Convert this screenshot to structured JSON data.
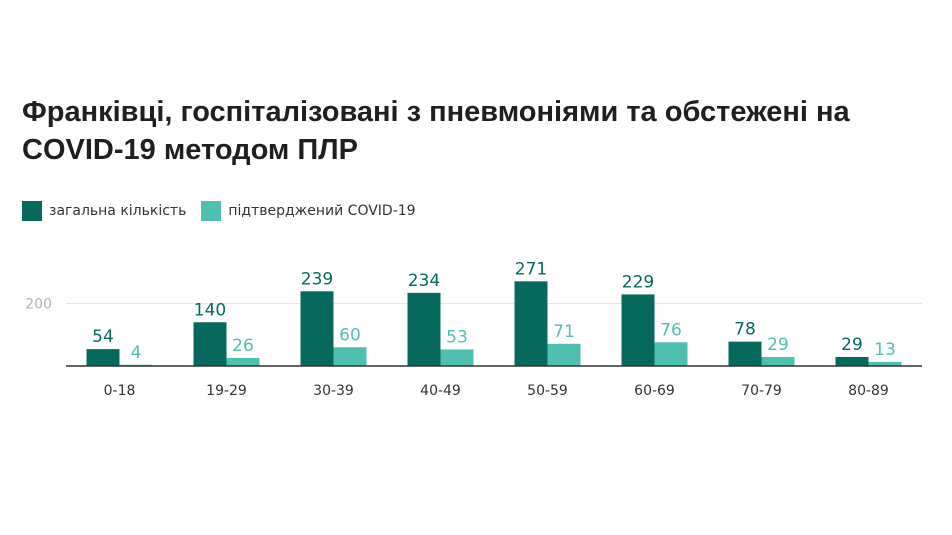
{
  "title": "Франківці, госпіталізовані з пневмоніями та обстежені на COVID-19 методом ПЛР",
  "colors": {
    "total": "#07685f",
    "confirmed": "#4fbfb1",
    "grid": "#e6e6e6",
    "axis": "#333333"
  },
  "chart_data": {
    "type": "bar",
    "title": "Франківці, госпіталізовані з пневмоніями та обстежені на COVID-19 методом ПЛР",
    "categories": [
      "0-18",
      "19-29",
      "30-39",
      "40-49",
      "50-59",
      "60-69",
      "70-79",
      "80-89"
    ],
    "series": [
      {
        "name": "загальна кількість",
        "color": "#07685f",
        "values": [
          54,
          140,
          239,
          234,
          271,
          229,
          78,
          29
        ]
      },
      {
        "name": "підтверджений COVID-19",
        "color": "#4fbfb1",
        "values": [
          4,
          26,
          60,
          53,
          71,
          76,
          29,
          13
        ]
      }
    ],
    "yticks": [
      200
    ],
    "ylim": [
      0,
      300
    ],
    "grid": true,
    "legend": "top-left",
    "xlabel": "",
    "ylabel": ""
  }
}
